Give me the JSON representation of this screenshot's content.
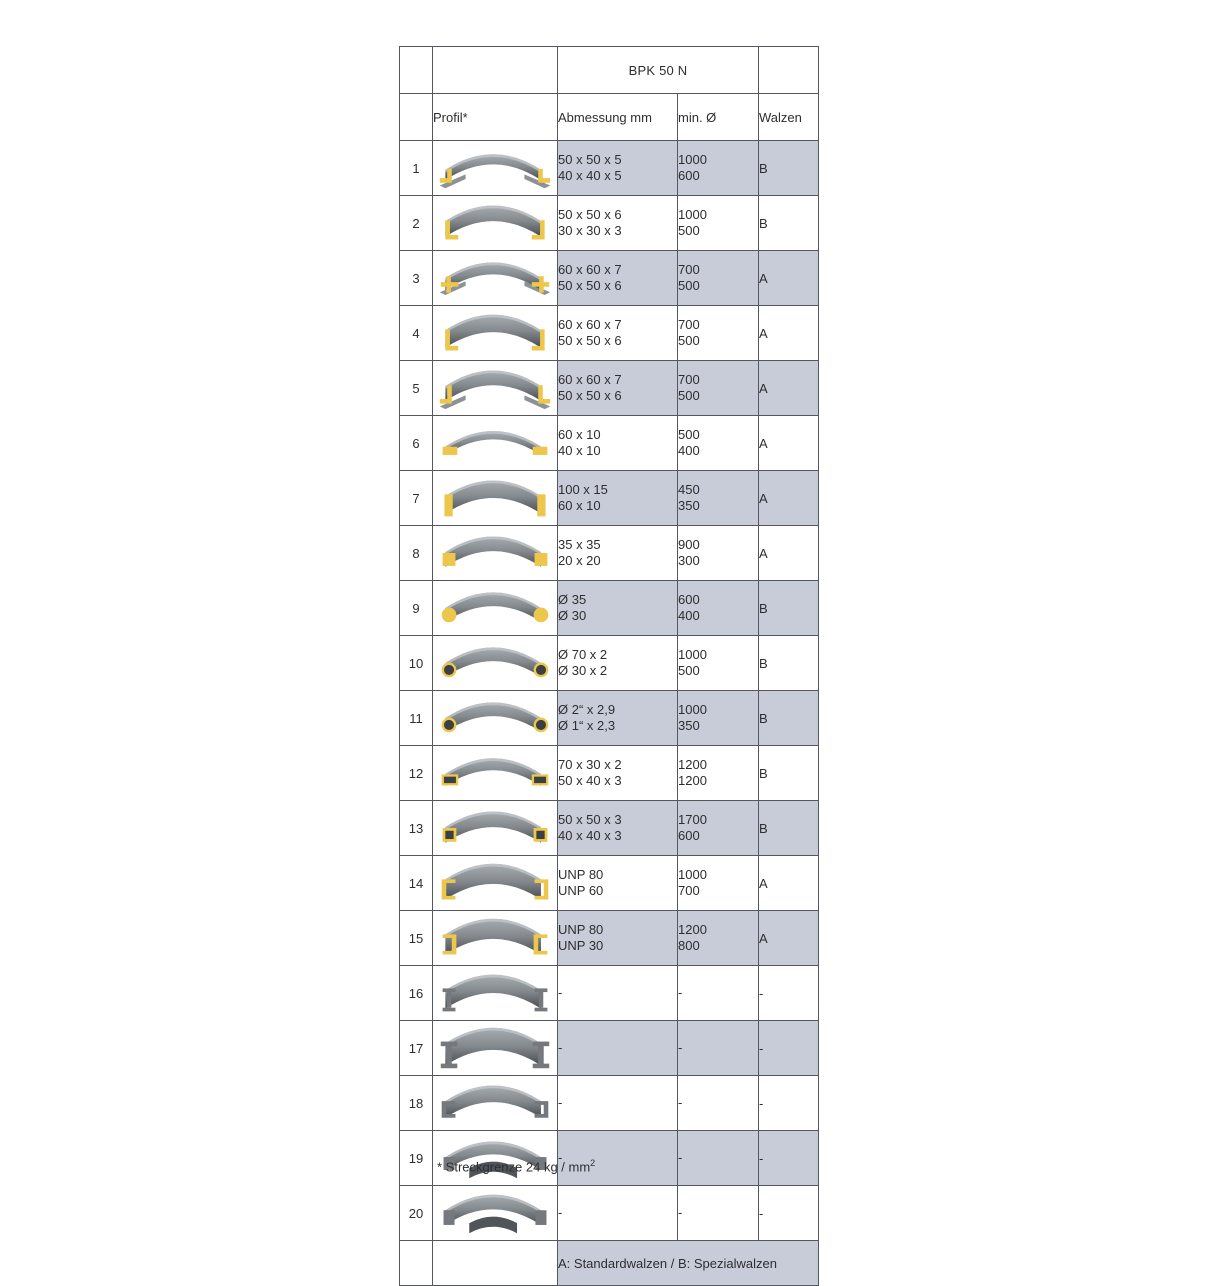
{
  "table": {
    "title": "BPK 50 N",
    "columns": {
      "profil": "Profil*",
      "abmessung": "Abmessung mm",
      "min_d": "min. Ø",
      "walzen": "Walzen"
    },
    "rows": [
      {
        "num": "1",
        "profile": "angle-legs-out",
        "abmessung": [
          "50 x 50 x 5",
          "40 x 40 x 5"
        ],
        "min_d": [
          "1000",
          "600"
        ],
        "walzen": "B"
      },
      {
        "num": "2",
        "profile": "angle-legs-in",
        "abmessung": [
          "50 x 50 x 6",
          "30 x 30 x 3"
        ],
        "min_d": [
          "1000",
          "500"
        ],
        "walzen": "B"
      },
      {
        "num": "3",
        "profile": "tee-flanges-out",
        "abmessung": [
          "60 x 60 x 7",
          "50 x 50 x 6"
        ],
        "min_d": [
          "700",
          "500"
        ],
        "walzen": "A"
      },
      {
        "num": "4",
        "profile": "angle-deep",
        "abmessung": [
          "60 x 60 x 7",
          "50 x 50 x 6"
        ],
        "min_d": [
          "700",
          "500"
        ],
        "walzen": "A"
      },
      {
        "num": "5",
        "profile": "tee-legs-down",
        "abmessung": [
          "60 x 60 x 7",
          "50 x 50 x 6"
        ],
        "min_d": [
          "700",
          "500"
        ],
        "walzen": "A"
      },
      {
        "num": "6",
        "profile": "flat-bar-easy-way",
        "abmessung": [
          "60 x 10",
          "40 x 10"
        ],
        "min_d": [
          "500",
          "400"
        ],
        "walzen": "A"
      },
      {
        "num": "7",
        "profile": "flat-bar-hard-way",
        "abmessung": [
          "100 x 15",
          "60 x 10"
        ],
        "min_d": [
          "450",
          "350"
        ],
        "walzen": "A"
      },
      {
        "num": "8",
        "profile": "square-bar",
        "abmessung": [
          "35 x 35",
          "20 x 20"
        ],
        "min_d": [
          "900",
          "300"
        ],
        "walzen": "A"
      },
      {
        "num": "9",
        "profile": "round-bar",
        "abmessung": [
          "Ø 35",
          "Ø 30"
        ],
        "min_d": [
          "600",
          "400"
        ],
        "walzen": "B"
      },
      {
        "num": "10",
        "profile": "round-tube",
        "abmessung": [
          "Ø 70 x 2",
          "Ø 30 x 2"
        ],
        "min_d": [
          "1000",
          "500"
        ],
        "walzen": "B"
      },
      {
        "num": "11",
        "profile": "round-pipe",
        "abmessung": [
          "Ø 2“ x 2,9",
          "Ø 1“ x 2,3"
        ],
        "min_d": [
          "1000",
          "350"
        ],
        "walzen": "B"
      },
      {
        "num": "12",
        "profile": "rect-tube",
        "abmessung": [
          "70 x 30 x 2",
          "50 x 40 x 3"
        ],
        "min_d": [
          "1200",
          "1200"
        ],
        "walzen": "B"
      },
      {
        "num": "13",
        "profile": "square-tube",
        "abmessung": [
          "50 x 50 x 3",
          "40 x 40 x 3"
        ],
        "min_d": [
          "1700",
          "600"
        ],
        "walzen": "B"
      },
      {
        "num": "14",
        "profile": "u-channel-legs-out",
        "abmessung": [
          "UNP 80",
          "UNP 60"
        ],
        "min_d": [
          "1000",
          "700"
        ],
        "walzen": "A"
      },
      {
        "num": "15",
        "profile": "u-channel-legs-in",
        "abmessung": [
          "UNP 80",
          "UNP 30"
        ],
        "min_d": [
          "1200",
          "800"
        ],
        "walzen": "A"
      },
      {
        "num": "16",
        "profile": "i-beam",
        "abmessung": [
          "-"
        ],
        "min_d": [
          "-"
        ],
        "walzen": "-"
      },
      {
        "num": "17",
        "profile": "i-beam-wide",
        "abmessung": [
          "-"
        ],
        "min_d": [
          "-"
        ],
        "walzen": "-"
      },
      {
        "num": "18",
        "profile": "channel-open-down",
        "abmessung": [
          "-"
        ],
        "min_d": [
          "-"
        ],
        "walzen": "-"
      },
      {
        "num": "19",
        "profile": "special-profile",
        "abmessung": [
          "-"
        ],
        "min_d": [
          "-"
        ],
        "walzen": "-"
      },
      {
        "num": "20",
        "profile": "special-profile-deep",
        "abmessung": [
          "-"
        ],
        "min_d": [
          "-"
        ],
        "walzen": "-"
      }
    ],
    "legend": "A: Standardwalzen / B: Spezialwalzen"
  },
  "footnote": {
    "text": "* Streckgrenze 24 kg / mm",
    "superscript": "2"
  },
  "colors": {
    "shaded_row": "#c8ccd9",
    "border": "#54575d",
    "profile_yellow": "#ecc74b",
    "profile_dark": "#3c4044",
    "profile_gray_cap": "#75797e",
    "steel_light": "#a8adb1",
    "steel_dark": "#484c50"
  }
}
